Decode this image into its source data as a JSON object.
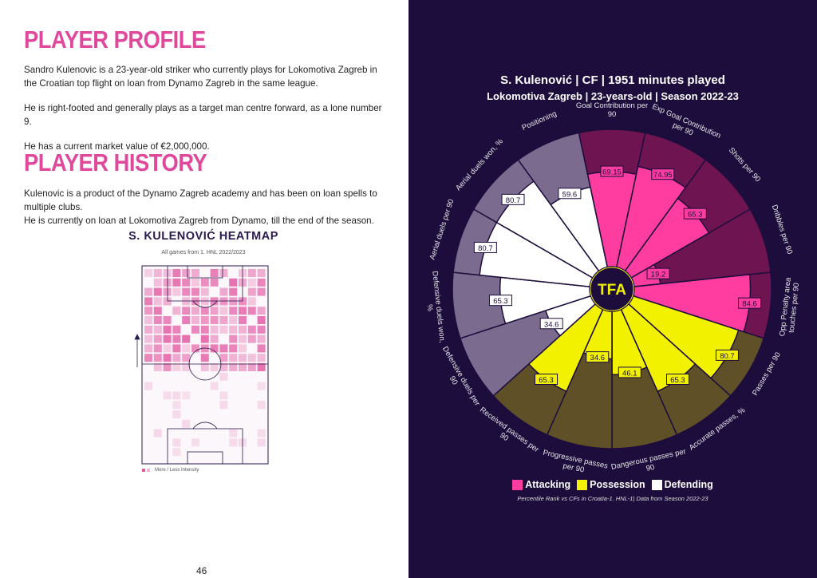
{
  "profile": {
    "heading": "PLAYER PROFILE",
    "paragraphs": [
      "Sandro Kulenovic is a 23-year-old striker who currently plays for Lokomotiva Zagreb in the Croatian top flight on loan from Dynamo Zagreb in the same league.",
      "He is right-footed and generally plays as a target man centre forward, as a lone number 9.",
      "He has a current market value of €2,000,000."
    ]
  },
  "history": {
    "heading": "PLAYER HISTORY",
    "lines": [
      "Kulenovic is a product of the Dynamo Zagreb academy and has been on loan spells to multiple clubs.",
      "He is currently on loan at Lokomotiva Zagreb from Dynamo, till the end of the season."
    ]
  },
  "heatmap": {
    "title": "S. KULENOVIĆ HEATMAP",
    "subtitle": "All games from 1. HNL 2022/2023",
    "legend": "More / Less Intensity"
  },
  "page_number": "46",
  "chart_data": {
    "type": "pizza",
    "title": "S. Kulenović | CF | 1951 minutes played",
    "subtitle": "Lokomotiva Zagreb | 23-years-old | Season 2022-23",
    "logo": "TFA",
    "note": "Percentile Rank vs CFs in Croatia-1. HNL-1| Data from Season 2022-23",
    "categories": [
      "Goal Contribution per 90",
      "Exp Goal Contribution per 90",
      "Shots per 90",
      "Dribbles per 90",
      "Opp Penalty area touches per 90",
      "Passes per 90",
      "Accurate passes, %",
      "Dangerous passes per 90",
      "Progressive passes per 90",
      "Received passes per 90",
      "Defensive duels per 90",
      "Defensive duels won, %",
      "Aerial duels per 90",
      "Aerial duels won, %",
      "Positioning"
    ],
    "ylim": [
      0,
      100
    ],
    "series": [
      {
        "name": "Attacking",
        "color": "#ff3da0",
        "slice_color": "#6e1450",
        "values": [
          69.15,
          74.95,
          65.3,
          19.2,
          84.6,
          null,
          null,
          null,
          null,
          null,
          null,
          null,
          null,
          null,
          null
        ]
      },
      {
        "name": "Possession",
        "color": "#f2f200",
        "slice_color": "#5f5027",
        "values": [
          null,
          null,
          null,
          null,
          null,
          80.7,
          65.3,
          46.1,
          34.6,
          65.3,
          null,
          null,
          null,
          null,
          null
        ]
      },
      {
        "name": "Defending",
        "color": "#ffffff",
        "slice_color": "#7a6b8f",
        "values": [
          null,
          null,
          null,
          null,
          null,
          null,
          null,
          null,
          null,
          null,
          34.6,
          65.3,
          80.7,
          80.7,
          59.6
        ]
      }
    ]
  }
}
